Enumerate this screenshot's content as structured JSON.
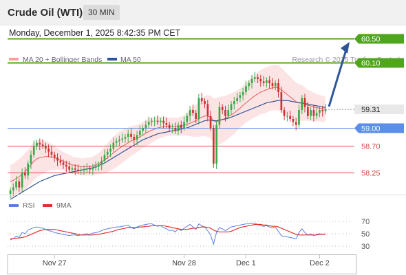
{
  "header": {
    "instrument": "Crude Oil (WTI)",
    "timeframe": "30 MIN"
  },
  "timestamp": "Monday, December 1, 2025 8:42:35 PM CET",
  "legend": {
    "bollinger_label": "MA 20 + Bollinger Bands",
    "ma50_label": "MA 50",
    "credit": "Research © 2025 Trading Central",
    "rsi_label": "RSI",
    "rsi_ma_label": "9MA"
  },
  "colors": {
    "resistance": "#4fa61c",
    "pivot": "#5a8ee8",
    "support": "#d84545",
    "band_fill": "#fde4e4",
    "ma20": "#e85c5c",
    "ma50": "#2f5597",
    "arrow": "#2f5597",
    "candle_up": "#3aa84b",
    "candle_down": "#cc3333",
    "rsi": "#5b7fe0",
    "rsi_ma": "#e03030",
    "price_badge": "#e8e8e8"
  },
  "chart_data": [
    {
      "type": "candlestick",
      "title": "Crude Oil (WTI)",
      "timeframe": "30 MIN",
      "y_range": [
        57.6,
        60.75
      ],
      "x_labels": [
        "Nov 27",
        "Nov 28",
        "Dec 1",
        "Dec 2"
      ],
      "current_price": 59.31,
      "levels": [
        {
          "value": 60.5,
          "label": "60.50",
          "kind": "resistance"
        },
        {
          "value": 60.1,
          "label": "60.10",
          "kind": "resistance"
        },
        {
          "value": 59.0,
          "label": "59.00",
          "kind": "pivot"
        },
        {
          "value": 58.7,
          "label": "58.70",
          "kind": "support"
        },
        {
          "value": 58.25,
          "label": "58.25",
          "kind": "support"
        }
      ],
      "close": [
        57.95,
        58.0,
        58.1,
        58.0,
        58.25,
        58.2,
        58.4,
        58.55,
        58.7,
        58.75,
        58.72,
        58.7,
        58.65,
        58.6,
        58.55,
        58.5,
        58.45,
        58.42,
        58.38,
        58.35,
        58.3,
        58.32,
        58.3,
        58.28,
        58.3,
        58.3,
        58.32,
        58.3,
        58.33,
        58.35,
        58.38,
        58.45,
        58.55,
        58.6,
        58.65,
        58.75,
        58.78,
        58.8,
        58.82,
        58.85,
        58.9,
        58.85,
        58.8,
        58.88,
        58.95,
        59.0,
        59.05,
        59.1,
        59.12,
        59.12,
        59.1,
        59.12,
        59.08,
        59.05,
        59.0,
        59.0,
        58.95,
        59.05,
        59.0,
        59.1,
        59.2,
        59.3,
        59.25,
        59.15,
        59.5,
        59.45,
        59.4,
        59.2,
        59.0,
        58.4,
        59.05,
        59.35,
        59.3,
        59.2,
        59.3,
        59.4,
        59.45,
        59.5,
        59.55,
        59.6,
        59.7,
        59.75,
        59.82,
        59.85,
        59.82,
        59.78,
        59.75,
        59.8,
        59.75,
        59.7,
        59.75,
        59.6,
        59.3,
        59.2,
        59.2,
        59.15,
        59.1,
        59.05,
        59.3,
        59.5,
        59.35,
        59.2,
        59.3,
        59.2,
        59.25,
        59.3,
        59.28,
        59.31
      ],
      "ma20": [
        58.1,
        58.12,
        58.15,
        58.18,
        58.22,
        58.27,
        58.32,
        58.38,
        58.44,
        58.48,
        58.5,
        58.51,
        58.52,
        58.52,
        58.51,
        58.5,
        58.48,
        58.46,
        58.44,
        58.42,
        58.4,
        58.38,
        58.37,
        58.36,
        58.35,
        58.35,
        58.35,
        58.35,
        58.36,
        58.38,
        58.4,
        58.43,
        58.46,
        58.5,
        58.54,
        58.58,
        58.62,
        58.66,
        58.69,
        58.72,
        58.75,
        58.78,
        58.8,
        58.82,
        58.85,
        58.88,
        58.91,
        58.94,
        58.96,
        58.98,
        59.0,
        59.01,
        59.02,
        59.02,
        59.02,
        59.02,
        59.02,
        59.02,
        59.03,
        59.04,
        59.06,
        59.08,
        59.1,
        59.12,
        59.15,
        59.18,
        59.2,
        59.2,
        59.18,
        59.12,
        59.1,
        59.12,
        59.14,
        59.16,
        59.19,
        59.22,
        59.25,
        59.29,
        59.33,
        59.38,
        59.42,
        59.46,
        59.5,
        59.54,
        59.57,
        59.6,
        59.62,
        59.64,
        59.66,
        59.67,
        59.68,
        59.67,
        59.64,
        59.6,
        59.56,
        59.52,
        59.48,
        59.44,
        59.42,
        59.42,
        59.4,
        59.38,
        59.37,
        59.35,
        59.34,
        59.33,
        59.32,
        59.31
      ],
      "bb_width": [
        0.28,
        0.28,
        0.29,
        0.3,
        0.3,
        0.31,
        0.31,
        0.32,
        0.32,
        0.31,
        0.3,
        0.28,
        0.26,
        0.24,
        0.22,
        0.2,
        0.18,
        0.17,
        0.16,
        0.15,
        0.15,
        0.14,
        0.14,
        0.14,
        0.14,
        0.14,
        0.15,
        0.15,
        0.16,
        0.17,
        0.18,
        0.2,
        0.22,
        0.24,
        0.26,
        0.27,
        0.28,
        0.28,
        0.28,
        0.27,
        0.26,
        0.25,
        0.24,
        0.23,
        0.22,
        0.22,
        0.22,
        0.22,
        0.21,
        0.2,
        0.19,
        0.18,
        0.17,
        0.16,
        0.15,
        0.15,
        0.15,
        0.15,
        0.16,
        0.17,
        0.19,
        0.22,
        0.25,
        0.27,
        0.3,
        0.32,
        0.34,
        0.35,
        0.36,
        0.38,
        0.4,
        0.4,
        0.39,
        0.38,
        0.37,
        0.36,
        0.35,
        0.34,
        0.33,
        0.33,
        0.33,
        0.34,
        0.35,
        0.36,
        0.37,
        0.37,
        0.38,
        0.38,
        0.38,
        0.38,
        0.38,
        0.38,
        0.37,
        0.36,
        0.35,
        0.34,
        0.33,
        0.32,
        0.31,
        0.3,
        0.28,
        0.26,
        0.25,
        0.24,
        0.23,
        0.22,
        0.22,
        0.21
      ],
      "ma50": [
        57.8,
        57.83,
        57.86,
        57.89,
        57.92,
        57.95,
        57.98,
        58.01,
        58.04,
        58.07,
        58.1,
        58.12,
        58.14,
        58.16,
        58.18,
        58.2,
        58.21,
        58.22,
        58.23,
        58.24,
        58.25,
        58.26,
        58.27,
        58.28,
        58.29,
        58.3,
        58.31,
        58.32,
        58.33,
        58.35,
        58.37,
        58.39,
        58.41,
        58.44,
        58.47,
        58.5,
        58.53,
        58.56,
        58.59,
        58.62,
        58.65,
        58.68,
        58.71,
        58.74,
        58.77,
        58.8,
        58.82,
        58.84,
        58.86,
        58.88,
        58.9,
        58.91,
        58.92,
        58.93,
        58.94,
        58.95,
        58.96,
        58.97,
        58.98,
        58.99,
        59.0,
        59.02,
        59.04,
        59.06,
        59.08,
        59.1,
        59.12,
        59.13,
        59.13,
        59.12,
        59.12,
        59.13,
        59.14,
        59.15,
        59.16,
        59.18,
        59.2,
        59.22,
        59.24,
        59.26,
        59.28,
        59.3,
        59.32,
        59.34,
        59.36,
        59.38,
        59.4,
        59.42,
        59.43,
        59.44,
        59.45,
        59.46,
        59.46,
        59.46,
        59.46,
        59.45,
        59.44,
        59.43,
        59.42,
        59.42,
        59.41,
        59.4,
        59.39,
        59.38,
        59.37,
        59.36,
        59.35,
        59.34
      ]
    },
    {
      "type": "line",
      "title": "RSI",
      "y_range": [
        20,
        80
      ],
      "y_ticks": [
        70,
        50,
        30
      ],
      "series": [
        {
          "name": "RSI",
          "values": [
            40,
            42,
            46,
            44,
            52,
            50,
            56,
            58,
            60,
            61,
            60,
            59,
            57,
            55,
            54,
            52,
            51,
            50,
            49,
            48,
            47,
            48,
            48,
            47,
            48,
            49,
            50,
            49,
            51,
            52,
            53,
            55,
            57,
            58,
            59,
            60,
            61,
            61,
            62,
            63,
            64,
            60,
            58,
            61,
            63,
            64,
            65,
            66,
            66,
            64,
            62,
            63,
            60,
            58,
            55,
            56,
            53,
            58,
            55,
            59,
            62,
            65,
            61,
            57,
            66,
            63,
            61,
            55,
            48,
            33,
            52,
            60,
            58,
            55,
            58,
            61,
            62,
            63,
            64,
            65,
            66,
            66,
            67,
            67,
            65,
            63,
            62,
            63,
            61,
            60,
            60,
            54,
            47,
            45,
            45,
            44,
            43,
            42,
            52,
            58,
            52,
            48,
            50,
            47,
            49,
            50,
            49,
            50
          ]
        },
        {
          "name": "9MA",
          "values": [
            42,
            42,
            43,
            43,
            44,
            45,
            47,
            49,
            51,
            53,
            55,
            56,
            57,
            57,
            57,
            57,
            56,
            55,
            54,
            53,
            52,
            51,
            50,
            49,
            48,
            48,
            48,
            48,
            48,
            49,
            49,
            50,
            51,
            52,
            53,
            54,
            56,
            57,
            58,
            59,
            60,
            60,
            60,
            60,
            61,
            61,
            62,
            62,
            63,
            63,
            63,
            63,
            63,
            62,
            61,
            60,
            59,
            58,
            57,
            57,
            57,
            58,
            59,
            59,
            60,
            61,
            61,
            60,
            59,
            56,
            54,
            53,
            53,
            53,
            53,
            54,
            56,
            58,
            60,
            61,
            62,
            63,
            64,
            65,
            65,
            65,
            64,
            64,
            63,
            62,
            62,
            61,
            59,
            57,
            55,
            53,
            51,
            49,
            48,
            48,
            48,
            48,
            48,
            48,
            48,
            49,
            49,
            49
          ]
        }
      ]
    }
  ]
}
